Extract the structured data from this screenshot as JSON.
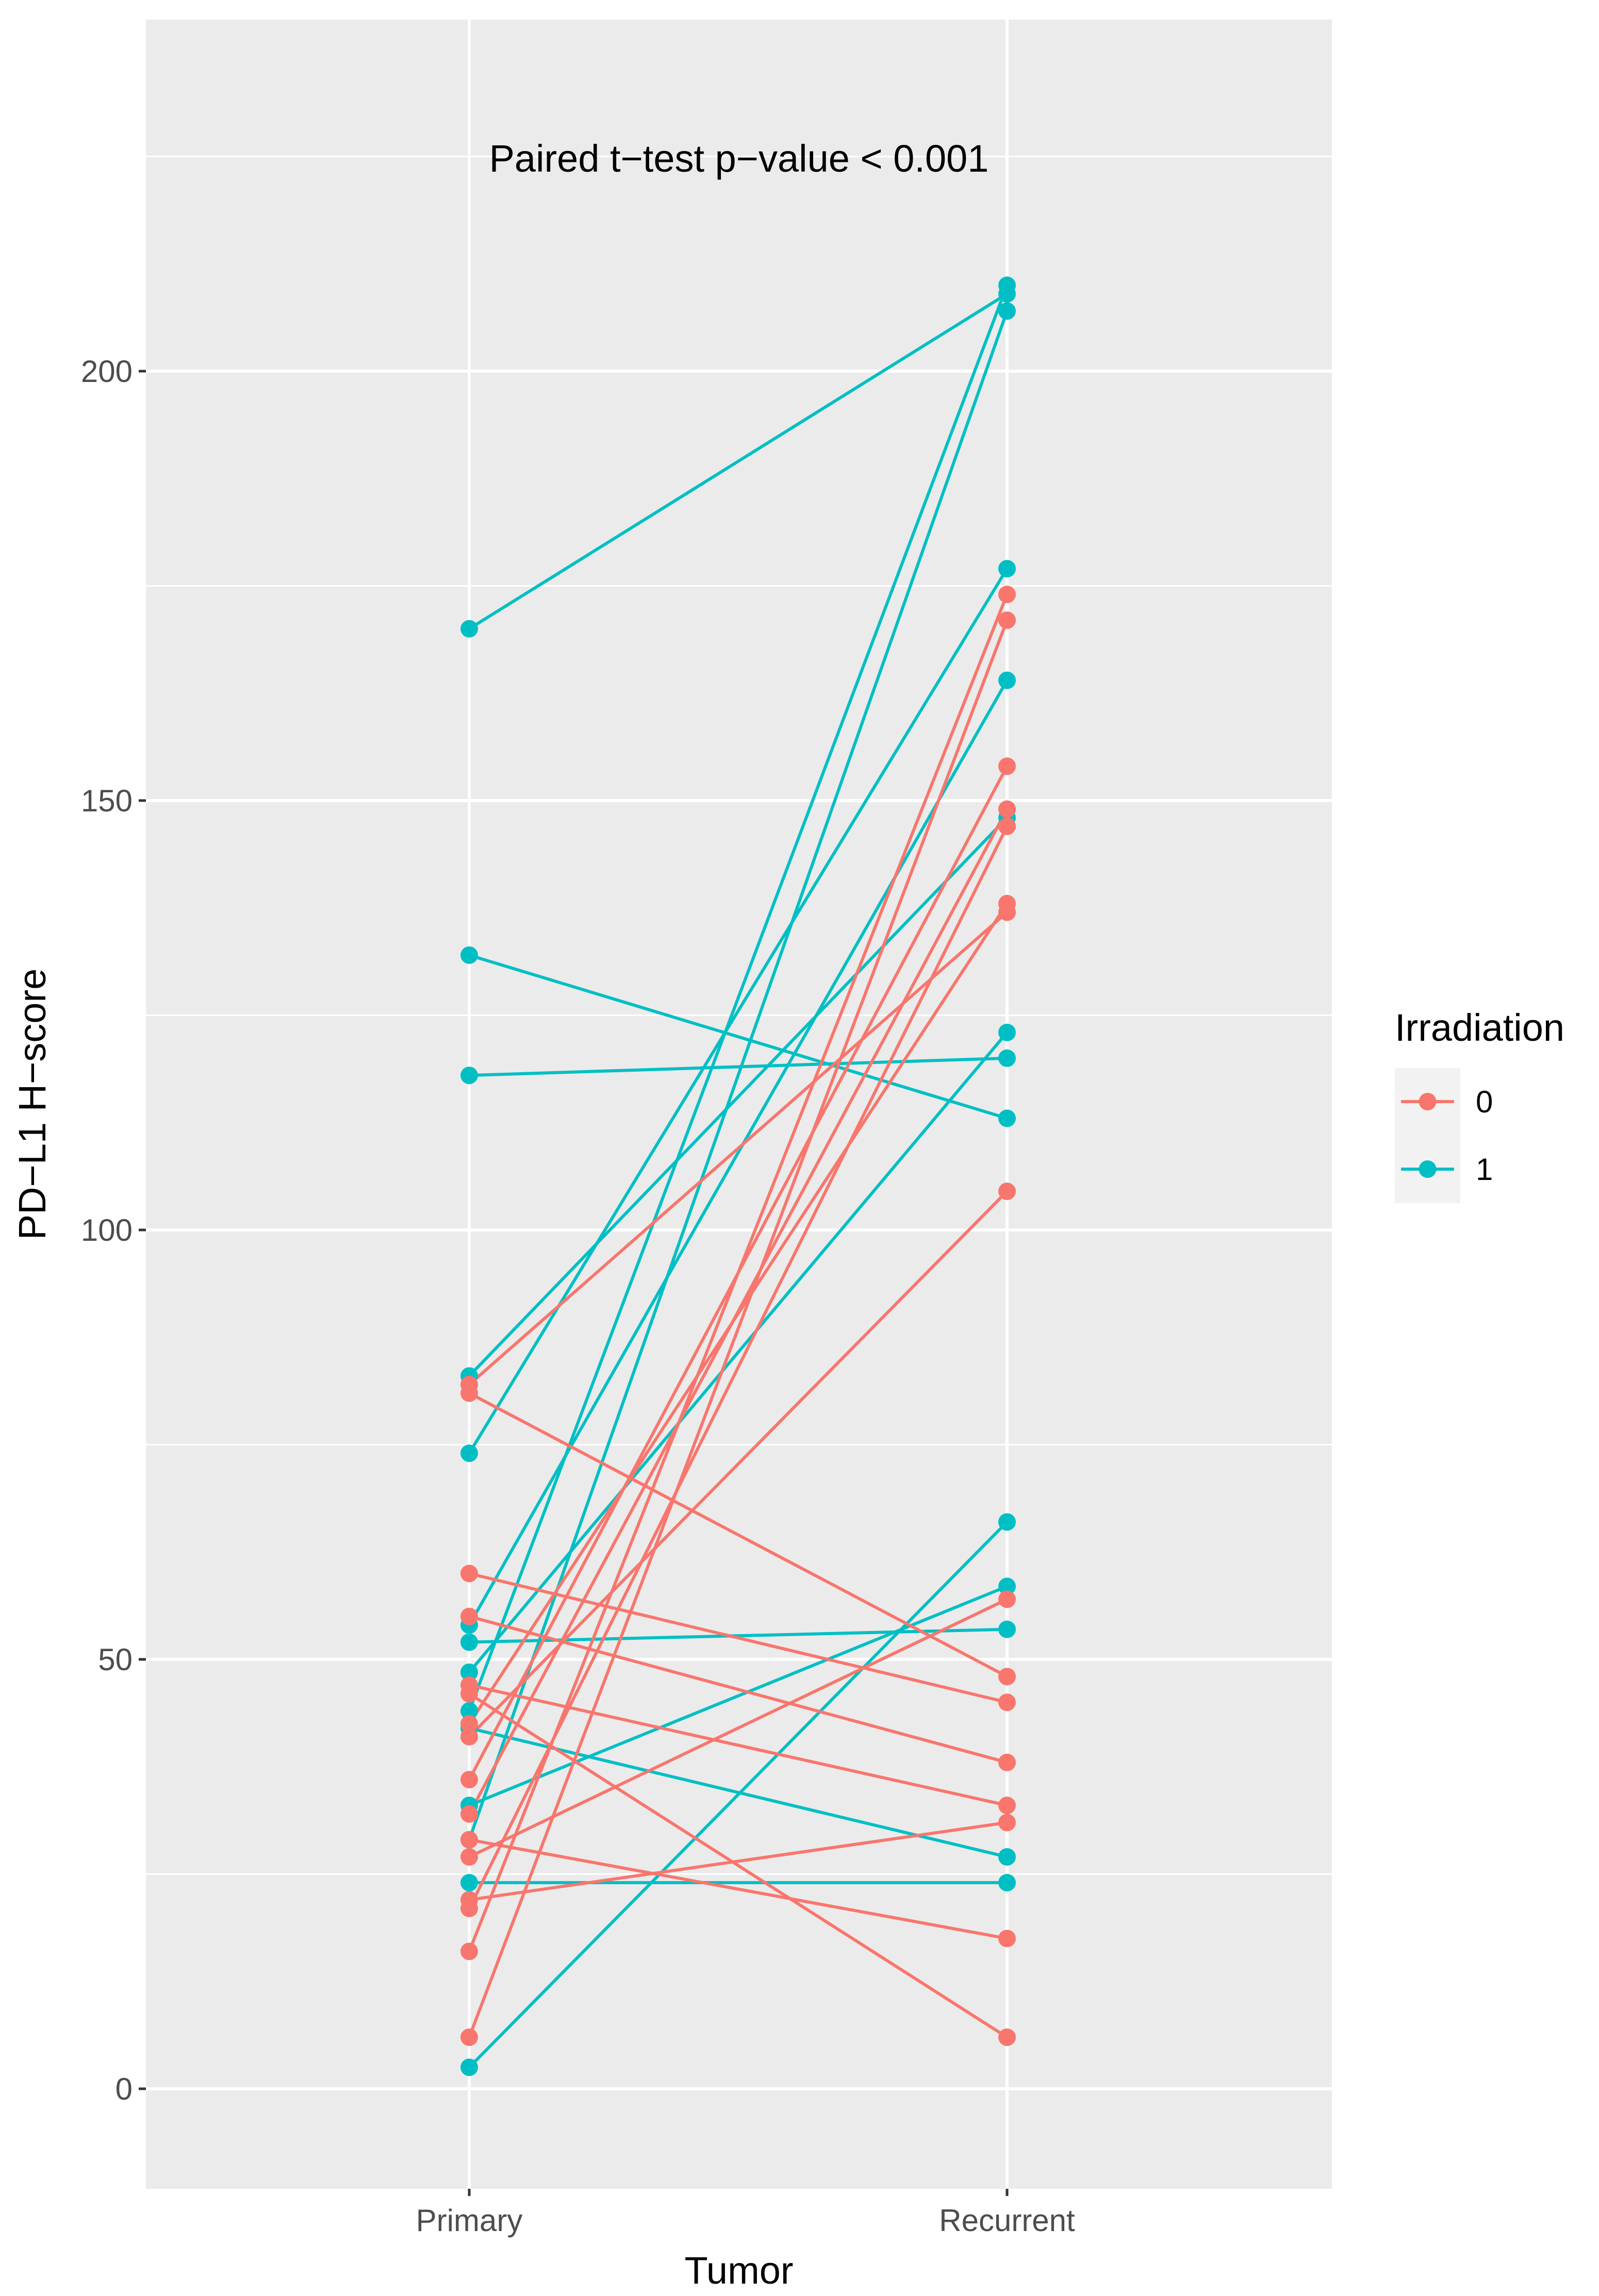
{
  "chart_data": {
    "type": "line",
    "xlabel": "Tumor",
    "ylabel": "PD−L1 H−score",
    "categories": [
      "Primary",
      "Recurrent"
    ],
    "y_ticks": [
      0,
      50,
      100,
      150,
      200
    ],
    "y_tick_labels": [
      "0",
      "50",
      "100",
      "150",
      "200"
    ],
    "ylim": [
      -11,
      242
    ],
    "grid": true,
    "annotation": "Paired t−test p−value < 0.001",
    "legend": {
      "title": "Irradiation",
      "position": "right",
      "entries": [
        {
          "label": "0",
          "color": "#F8766D"
        },
        {
          "label": "1",
          "color": "#00BFC4"
        }
      ]
    },
    "series": [
      {
        "group": "1",
        "color": "#00BFC4",
        "values": [
          170,
          209
        ]
      },
      {
        "group": "1",
        "color": "#00BFC4",
        "values": [
          132,
          113
        ]
      },
      {
        "group": "1",
        "color": "#00BFC4",
        "values": [
          118,
          120
        ]
      },
      {
        "group": "1",
        "color": "#00BFC4",
        "values": [
          83,
          148
        ]
      },
      {
        "group": "1",
        "color": "#00BFC4",
        "values": [
          74,
          177
        ]
      },
      {
        "group": "1",
        "color": "#00BFC4",
        "values": [
          54,
          164
        ]
      },
      {
        "group": "1",
        "color": "#00BFC4",
        "values": [
          52,
          53.5
        ]
      },
      {
        "group": "1",
        "color": "#00BFC4",
        "values": [
          48.5,
          123
        ]
      },
      {
        "group": "1",
        "color": "#00BFC4",
        "values": [
          44,
          210
        ]
      },
      {
        "group": "1",
        "color": "#00BFC4",
        "values": [
          42,
          27
        ]
      },
      {
        "group": "1",
        "color": "#00BFC4",
        "values": [
          33,
          58.5
        ]
      },
      {
        "group": "1",
        "color": "#00BFC4",
        "values": [
          29,
          207
        ]
      },
      {
        "group": "1",
        "color": "#00BFC4",
        "values": [
          24,
          24
        ]
      },
      {
        "group": "1",
        "color": "#00BFC4",
        "values": [
          2.5,
          66
        ]
      },
      {
        "group": "0",
        "color": "#F8766D",
        "values": [
          81,
          48
        ]
      },
      {
        "group": "0",
        "color": "#F8766D",
        "values": [
          82,
          137
        ]
      },
      {
        "group": "0",
        "color": "#F8766D",
        "values": [
          60,
          45
        ]
      },
      {
        "group": "0",
        "color": "#F8766D",
        "values": [
          55,
          38
        ]
      },
      {
        "group": "0",
        "color": "#F8766D",
        "values": [
          47,
          33
        ]
      },
      {
        "group": "0",
        "color": "#F8766D",
        "values": [
          42.5,
          138
        ]
      },
      {
        "group": "0",
        "color": "#F8766D",
        "values": [
          41,
          104.5
        ]
      },
      {
        "group": "0",
        "color": "#F8766D",
        "values": [
          32,
          149
        ]
      },
      {
        "group": "0",
        "color": "#F8766D",
        "values": [
          27,
          57
        ]
      },
      {
        "group": "0",
        "color": "#F8766D",
        "values": [
          29,
          17.5
        ]
      },
      {
        "group": "0",
        "color": "#F8766D",
        "values": [
          22,
          31
        ]
      },
      {
        "group": "0",
        "color": "#F8766D",
        "values": [
          21,
          147
        ]
      },
      {
        "group": "0",
        "color": "#F8766D",
        "values": [
          16,
          174
        ]
      },
      {
        "group": "0",
        "color": "#F8766D",
        "values": [
          6,
          171
        ]
      },
      {
        "group": "0",
        "color": "#F8766D",
        "values": [
          46,
          6
        ]
      },
      {
        "group": "0",
        "color": "#F8766D",
        "values": [
          36,
          154
        ]
      }
    ]
  }
}
